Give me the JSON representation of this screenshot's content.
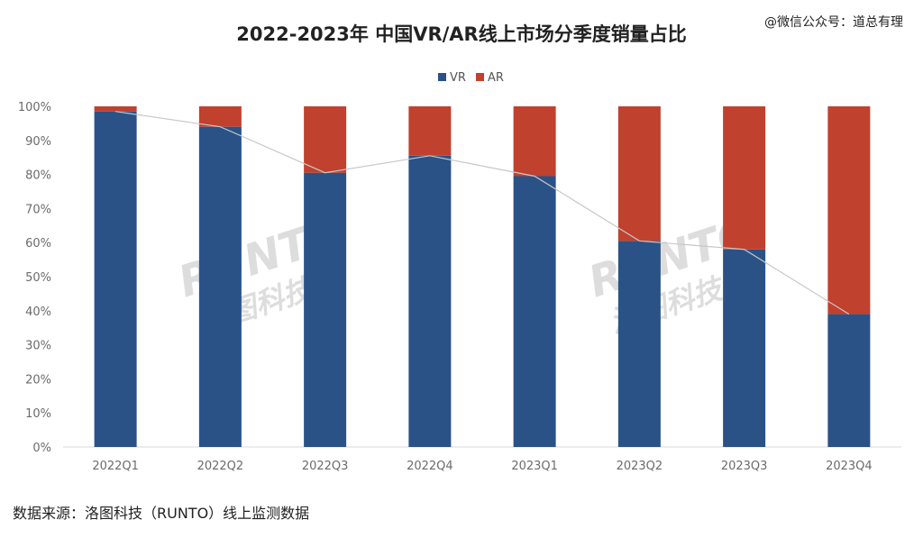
{
  "title": "2022-2023年 中国VR/AR线上市场分季度销量占比",
  "credit": "@微信公众号：道总有理",
  "source": "数据来源：洛图科技（RUNTO）线上监测数据",
  "watermark": {
    "latin": "RUNTO",
    "chinese": "洛图科技"
  },
  "colors": {
    "vr": "#2a5286",
    "ar": "#bf412e",
    "trend_line": "#c8c8c8",
    "grid": "#d9d9d9"
  },
  "chart_data": {
    "type": "bar",
    "stacked": true,
    "percent": true,
    "categories": [
      "2022Q1",
      "2022Q2",
      "2022Q3",
      "2022Q4",
      "2023Q1",
      "2023Q2",
      "2023Q3",
      "2023Q4"
    ],
    "series": [
      {
        "name": "VR",
        "values": [
          98.5,
          94,
          80.5,
          85.5,
          79.5,
          60.5,
          58,
          39
        ]
      },
      {
        "name": "AR",
        "values": [
          1.5,
          6,
          19.5,
          14.5,
          20.5,
          39.5,
          42,
          61
        ]
      }
    ],
    "ylim": [
      0,
      100
    ],
    "yticks": [
      "0%",
      "10%",
      "20%",
      "30%",
      "40%",
      "50%",
      "60%",
      "70%",
      "80%",
      "90%",
      "100%"
    ],
    "legend_position": "top-center",
    "trend_line": "VR share",
    "grid": false
  }
}
